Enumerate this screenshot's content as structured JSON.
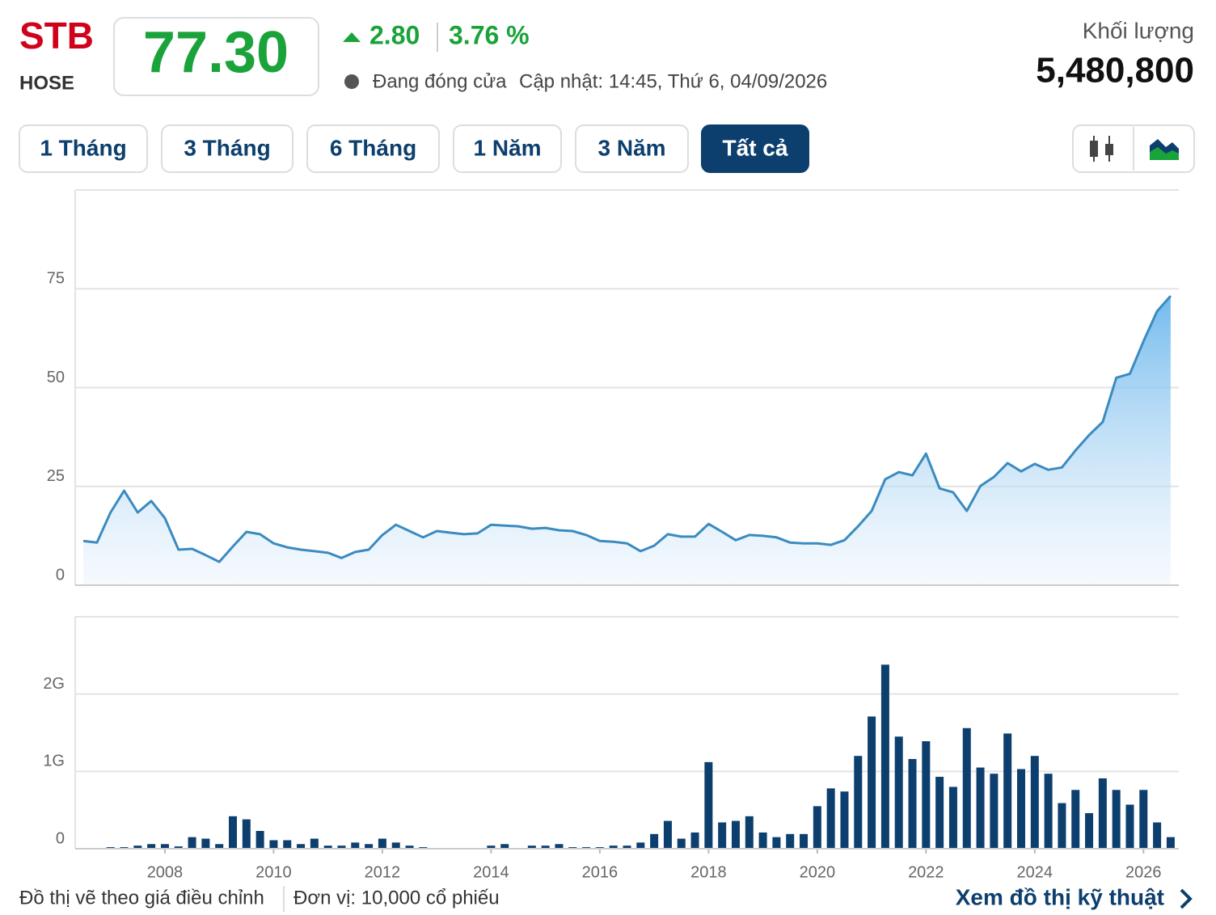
{
  "header": {
    "ticker": "STB",
    "exchange": "HOSE",
    "price": "77.30",
    "change": "2.80",
    "change_pct": "3.76 %",
    "status": "Đang đóng cửa",
    "updated": "Cập nhật: 14:45, Thứ 6, 04/09/2026",
    "volume_label": "Khối lượng",
    "volume": "5,480,800"
  },
  "tabs": [
    "1 Tháng",
    "3 Tháng",
    "6 Tháng",
    "1 Năm",
    "3 Năm",
    "Tất cả"
  ],
  "footer": {
    "note": "Đồ thị vẽ theo giá điều chỉnh",
    "unit": "Đơn vị: 10,000 cổ phiếu",
    "link": "Xem đồ thị kỹ thuật"
  },
  "chart_data": [
    {
      "type": "area",
      "color": "#3a8bc0",
      "grid": true,
      "x": [
        2006.5,
        2006.75,
        2007,
        2007.25,
        2007.5,
        2007.75,
        2008,
        2008.25,
        2008.5,
        2008.75,
        2009,
        2009.25,
        2009.5,
        2009.75,
        2010,
        2010.25,
        2010.5,
        2010.75,
        2011,
        2011.25,
        2011.5,
        2011.75,
        2012,
        2012.25,
        2012.5,
        2012.75,
        2013,
        2013.25,
        2013.5,
        2013.75,
        2014,
        2014.25,
        2014.5,
        2014.75,
        2015,
        2015.25,
        2015.5,
        2015.75,
        2016,
        2016.25,
        2016.5,
        2016.75,
        2017,
        2017.25,
        2017.5,
        2017.75,
        2018,
        2018.25,
        2018.5,
        2018.75,
        2019,
        2019.25,
        2019.5,
        2019.75,
        2020,
        2020.25,
        2020.5,
        2020.75,
        2021,
        2021.25,
        2021.5,
        2021.75,
        2022,
        2022.25,
        2022.5,
        2022.75,
        2023,
        2023.25,
        2023.5,
        2023.75,
        2024,
        2024.25,
        2024.5,
        2024.75,
        2025,
        2025.25,
        2025.5,
        2025.75,
        2026,
        2026.25,
        2026.5
      ],
      "values": [
        11.2,
        10.8,
        18.4,
        23.9,
        18.4,
        21.3,
        17.0,
        9.0,
        9.2,
        7.6,
        5.9,
        9.8,
        13.5,
        12.9,
        10.6,
        9.6,
        9.0,
        8.6,
        8.2,
        6.9,
        8.4,
        9.0,
        12.7,
        15.3,
        13.7,
        12.1,
        13.7,
        13.3,
        12.9,
        13.1,
        15.3,
        15.1,
        14.9,
        14.3,
        14.5,
        13.9,
        13.7,
        12.7,
        11.2,
        11.0,
        10.6,
        8.6,
        10.0,
        12.9,
        12.3,
        12.3,
        15.5,
        13.5,
        11.4,
        12.7,
        12.5,
        12.1,
        10.8,
        10.6,
        10.6,
        10.2,
        11.4,
        14.9,
        18.8,
        26.8,
        28.6,
        27.8,
        33.3,
        24.5,
        23.5,
        18.8,
        25.1,
        27.4,
        30.9,
        28.8,
        30.7,
        29.2,
        29.8,
        34.1,
        38.0,
        41.3,
        52.5,
        53.5,
        61.7,
        69.3,
        73.2
      ],
      "xlim": [
        2006.35,
        2026.65
      ],
      "ylim": [
        0,
        100
      ],
      "yticks": [
        0,
        25,
        50,
        75
      ]
    },
    {
      "type": "bar",
      "color": "#0d3f6e",
      "grid": true,
      "x": [
        2006.5,
        2006.75,
        2007,
        2007.25,
        2007.5,
        2007.75,
        2008,
        2008.25,
        2008.5,
        2008.75,
        2009,
        2009.25,
        2009.5,
        2009.75,
        2010,
        2010.25,
        2010.5,
        2010.75,
        2011,
        2011.25,
        2011.5,
        2011.75,
        2012,
        2012.25,
        2012.5,
        2012.75,
        2013,
        2013.25,
        2013.5,
        2013.75,
        2014,
        2014.25,
        2014.5,
        2014.75,
        2015,
        2015.25,
        2015.5,
        2015.75,
        2016,
        2016.25,
        2016.5,
        2016.75,
        2017,
        2017.25,
        2017.5,
        2017.75,
        2018,
        2018.25,
        2018.5,
        2018.75,
        2019,
        2019.25,
        2019.5,
        2019.75,
        2020,
        2020.25,
        2020.5,
        2020.75,
        2021,
        2021.25,
        2021.5,
        2021.75,
        2022,
        2022.25,
        2022.5,
        2022.75,
        2023,
        2023.25,
        2023.5,
        2023.75,
        2024,
        2024.25,
        2024.5,
        2024.75,
        2025,
        2025.25,
        2025.5,
        2025.75,
        2026,
        2026.25,
        2026.5
      ],
      "values": [
        null,
        null,
        20000000,
        20000000,
        40000000,
        60000000,
        60000000,
        30000000,
        150000000,
        130000000,
        60000000,
        420000000,
        380000000,
        230000000,
        110000000,
        110000000,
        60000000,
        130000000,
        40000000,
        40000000,
        80000000,
        60000000,
        130000000,
        80000000,
        40000000,
        20000000,
        null,
        null,
        null,
        null,
        40000000,
        60000000,
        null,
        40000000,
        40000000,
        60000000,
        20000000,
        20000000,
        20000000,
        40000000,
        40000000,
        80000000,
        190000000,
        360000000,
        130000000,
        210000000,
        1120000000,
        340000000,
        360000000,
        420000000,
        210000000,
        150000000,
        190000000,
        190000000,
        550000000,
        780000000,
        740000000,
        1200000000,
        1710000000,
        2380000000,
        1450000000,
        1160000000,
        1390000000,
        930000000,
        800000000,
        1560000000,
        1050000000,
        970000000,
        1490000000,
        1030000000,
        1200000000,
        970000000,
        590000000,
        760000000,
        460000000,
        910000000,
        760000000,
        570000000,
        760000000,
        340000000,
        150000000
      ],
      "xlim": [
        2006.35,
        2026.65
      ],
      "xticks": [
        2008,
        2010,
        2012,
        2014,
        2016,
        2018,
        2020,
        2022,
        2024,
        2026
      ],
      "ylim": [
        0,
        3000000000
      ],
      "yticks": [
        0,
        {
          "value": 1000000000,
          "label": "1G"
        },
        {
          "value": 2000000000,
          "label": "2G"
        }
      ]
    }
  ]
}
